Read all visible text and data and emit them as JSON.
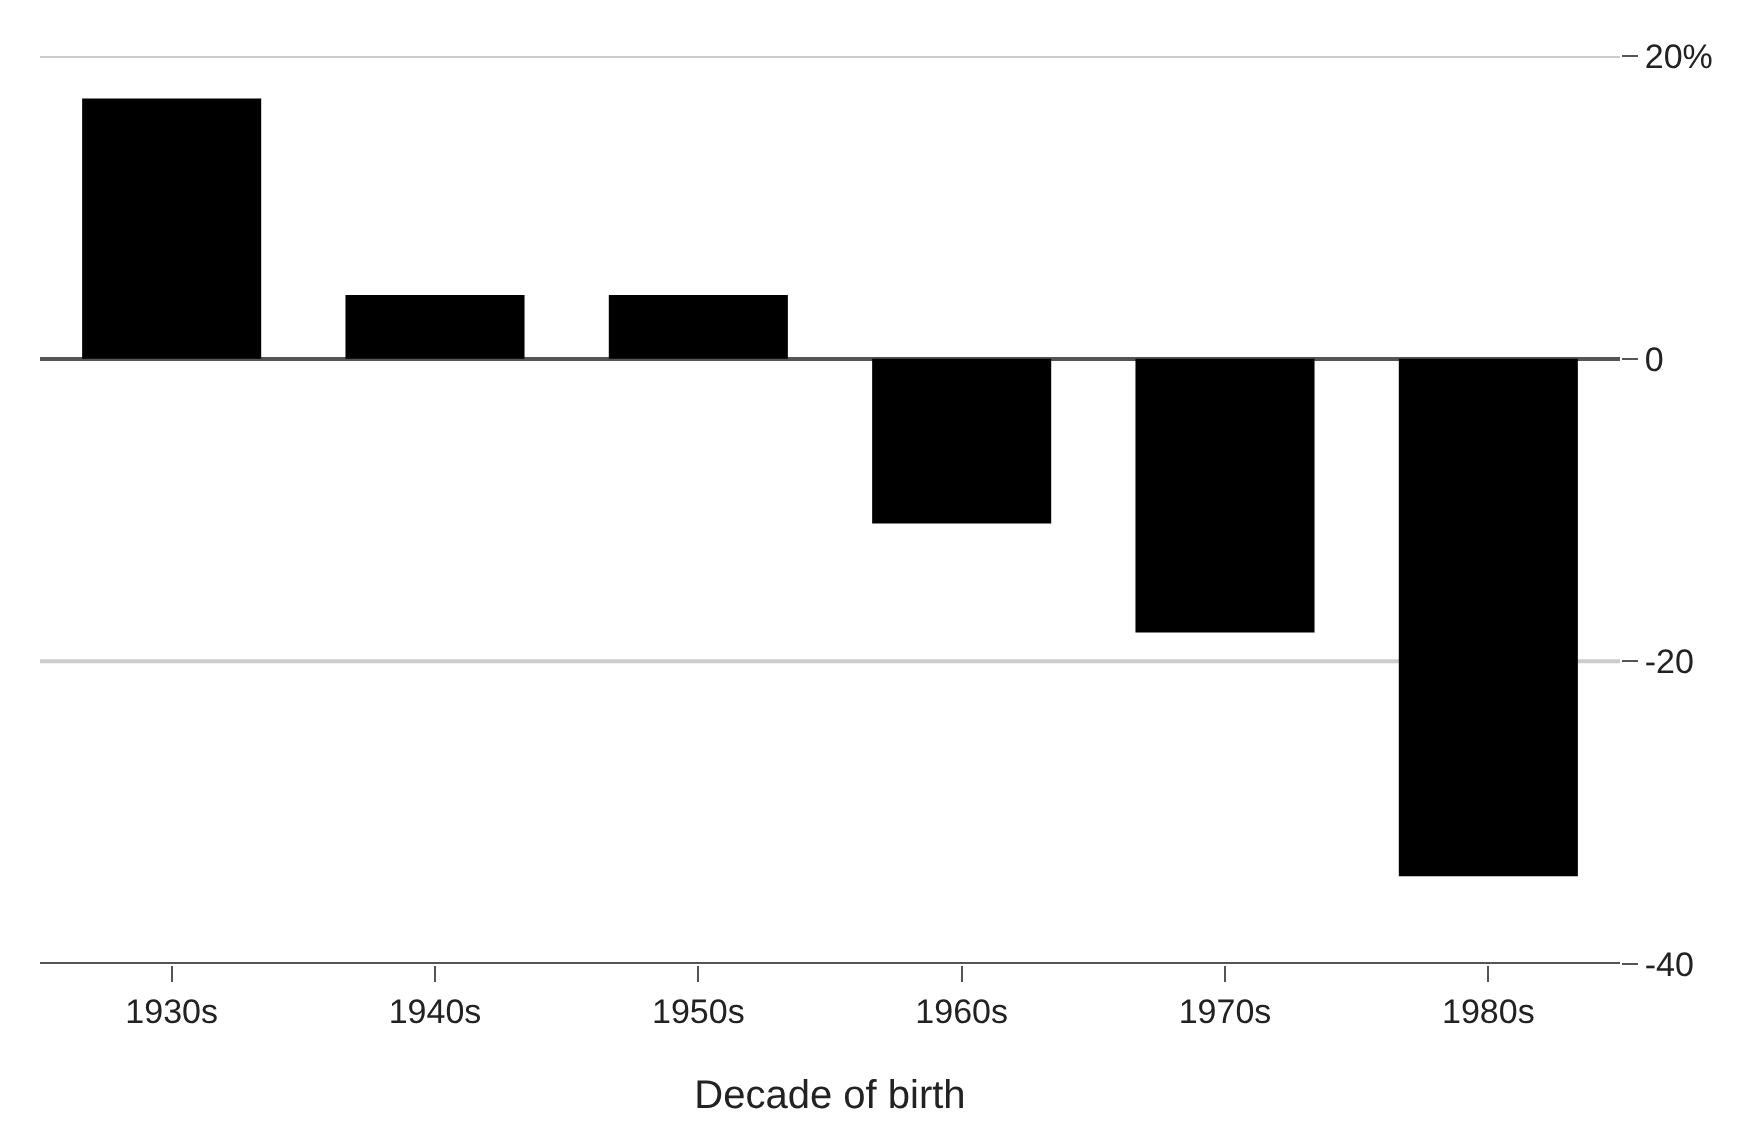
{
  "chart_data": {
    "type": "bar",
    "xlabel": "Decade of birth",
    "categories": [
      "1930s",
      "1940s",
      "1950s",
      "1960s",
      "1970s",
      "1980s"
    ],
    "series": [
      {
        "color": "#000000",
        "values": [
          17.2,
          4.2,
          4.2,
          -10.9,
          -18.1,
          -34.2
        ]
      }
    ],
    "ylim": [
      -40,
      20
    ],
    "yticks": [
      {
        "value": 20,
        "label": "20%"
      },
      0,
      -20,
      -40
    ],
    "ref_lines": [
      {
        "axis": "y",
        "value": 20,
        "color": "#cccccc"
      },
      {
        "axis": "y",
        "value": -20,
        "color": "#cccccc"
      }
    ],
    "legend": false
  }
}
